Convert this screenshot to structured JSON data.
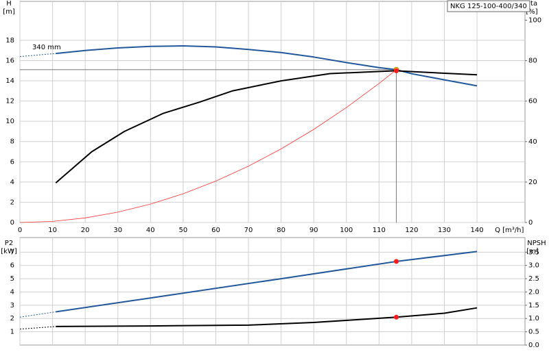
{
  "chart_data": [
    {
      "type": "line",
      "title": "NKG 125-100-400/340",
      "xlabel": "Q [m³/h]",
      "ylabel": "H",
      "yunit": "[m]",
      "y2label": "eta",
      "y2unit": "[%]",
      "xlim": [
        0,
        154.7
      ],
      "xticks": [
        0,
        10,
        20,
        30,
        40,
        50,
        60,
        70,
        80,
        90,
        100,
        110,
        120,
        130,
        140
      ],
      "ylim": [
        0,
        21.85
      ],
      "yticks": [
        0,
        2,
        4,
        6,
        8,
        10,
        12,
        14,
        16,
        18
      ],
      "y2lim": [
        0,
        109.3
      ],
      "y2ticks": [
        0,
        20,
        40,
        60,
        80,
        100
      ],
      "grid": true,
      "crosshair": true,
      "annotations": [
        "340 mm"
      ],
      "series": [
        {
          "color": "#21579b",
          "width": 2,
          "x": [
            11,
            20,
            30,
            40,
            50,
            60,
            70,
            80,
            90,
            100,
            110,
            115.3,
            120,
            130,
            140
          ],
          "values": [
            16.7,
            17.0,
            17.25,
            17.4,
            17.45,
            17.35,
            17.1,
            16.8,
            16.35,
            15.8,
            15.3,
            15.1,
            14.7,
            14.1,
            13.5
          ]
        },
        {
          "color": "#21579b",
          "width": 1,
          "dash": true,
          "x": [
            0,
            11
          ],
          "values": [
            16.4,
            16.7
          ]
        },
        {
          "color": "#000000",
          "width": 2,
          "axis": "y2",
          "x": [
            11,
            22,
            32,
            44,
            55,
            65,
            80,
            95,
            115,
            140
          ],
          "values": [
            19.6,
            35,
            45,
            54,
            59.5,
            65,
            70,
            73.6,
            75,
            73
          ]
        },
        {
          "color": "#ff3030",
          "width": 0.8,
          "x": [
            0,
            10,
            20,
            30,
            40,
            50,
            60,
            70,
            80,
            90,
            100,
            110,
            115.3
          ],
          "values": [
            0,
            0.11,
            0.45,
            1.02,
            1.82,
            2.84,
            4.09,
            5.57,
            7.27,
            9.2,
            11.36,
            13.74,
            15.1
          ]
        }
      ],
      "points": [
        {
          "x": 115.3,
          "y": 15.1,
          "color": "#ffd21f"
        },
        {
          "x": 115.3,
          "y": 75,
          "axis": "y2",
          "color": "#ff1a1a"
        }
      ]
    },
    {
      "type": "line",
      "ylabel": "P2",
      "yunit": "[kW]",
      "y2label": "NPSH",
      "y2unit": "[m]",
      "ylim": [
        0,
        8.1
      ],
      "yticks": [
        1,
        2,
        3,
        4,
        5,
        6,
        7
      ],
      "y2lim": [
        0,
        4.05
      ],
      "y2ticks": [
        {
          "value": 0,
          "label": "0.0"
        },
        0.5,
        {
          "value": 1,
          "label": "1.0"
        },
        1.5,
        {
          "value": 2,
          "label": "2.0"
        },
        2.5,
        {
          "value": 3,
          "label": "3.0"
        },
        3.5
      ],
      "grid": true,
      "series": [
        {
          "color": "#21579b",
          "width": 2,
          "x": [
            11,
            40,
            80,
            115.3,
            140
          ],
          "values": [
            2.5,
            3.55,
            5.0,
            6.3,
            7.05
          ]
        },
        {
          "color": "#21579b",
          "width": 1,
          "dash": true,
          "x": [
            0,
            11
          ],
          "values": [
            2.1,
            2.5
          ]
        },
        {
          "color": "#000000",
          "width": 2,
          "axis": "y2",
          "x": [
            11,
            40,
            70,
            90,
            115.3,
            130,
            140
          ],
          "values": [
            0.7,
            0.72,
            0.75,
            0.85,
            1.05,
            1.2,
            1.4
          ]
        },
        {
          "color": "#000000",
          "width": 1,
          "dash": true,
          "axis": "y2",
          "x": [
            0,
            11
          ],
          "values": [
            0.6,
            0.7
          ]
        }
      ],
      "points": [
        {
          "x": 115.3,
          "y": 6.3,
          "color": "#ff1a1a"
        },
        {
          "x": 115.3,
          "y": 1.05,
          "axis": "y2",
          "color": "#ff1a1a"
        }
      ]
    }
  ]
}
